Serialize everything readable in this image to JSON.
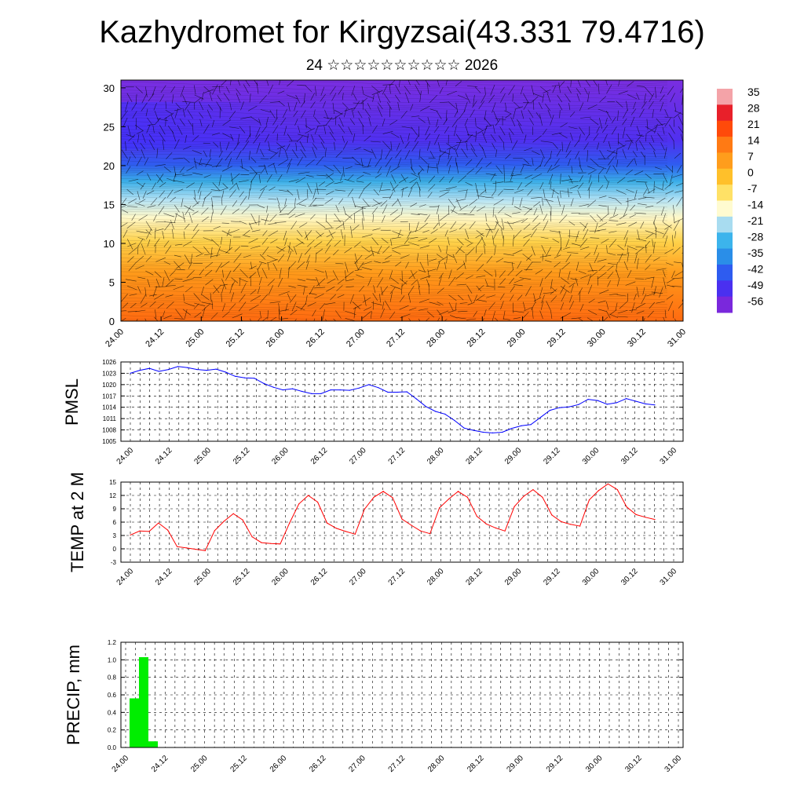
{
  "title": "Kazhydromet for Kirgyzsai(43.331 79.4716)",
  "subtitle": "24 ☆☆☆☆☆☆☆☆☆☆ 2026",
  "colors": {
    "pmsl_line": "#0000ff",
    "temp_line": "#ff0000",
    "precip_bar": "#00ee00",
    "grid": "#000000"
  },
  "chart_data": [
    {
      "id": "upper-field",
      "type": "heatmap",
      "title": "",
      "y_ticks": [
        0,
        5,
        10,
        15,
        20,
        25,
        30
      ],
      "ylim": [
        0,
        31
      ],
      "x_tick_labels": [
        "24.00",
        "24.12",
        "25.00",
        "25.12",
        "26.00",
        "26.12",
        "27.00",
        "27.12",
        "28.00",
        "28.12",
        "29.00",
        "29.12",
        "30.00",
        "30.12",
        "31.00"
      ],
      "colorbar_labels": [
        "35",
        "28",
        "21",
        "14",
        "7",
        "0",
        "-7",
        "-14",
        "-21",
        "-28",
        "-35",
        "-42",
        "-49",
        "-56"
      ],
      "colorbar_colors": [
        "#f4a3a8",
        "#e8202a",
        "#ff4a0a",
        "#ff7a14",
        "#ff9d1c",
        "#ffc02a",
        "#ffe166",
        "#fffbd0",
        "#a8dcf0",
        "#3cb4ec",
        "#2a8ee8",
        "#2e5cf0",
        "#4a30f0",
        "#7a28dc"
      ]
    },
    {
      "id": "pmsl",
      "type": "line",
      "ylabel": "PMSL",
      "y_ticks": [
        1005,
        1008,
        1011,
        1014,
        1017,
        1020,
        1023,
        1026
      ],
      "ylim": [
        1005,
        1026
      ],
      "x_tick_labels": [
        "24.00",
        "24.12",
        "25.00",
        "25.12",
        "26.00",
        "26.12",
        "27.00",
        "27.12",
        "28.00",
        "28.12",
        "29.00",
        "29.12",
        "30.00",
        "30.12",
        "31.00"
      ],
      "series": [
        {
          "name": "PMSL",
          "values": [
            1023,
            1023.8,
            1024.3,
            1023.5,
            1024,
            1024.8,
            1024.5,
            1024,
            1023.8,
            1024.1,
            1023.3,
            1022.2,
            1021.8,
            1021.7,
            1020.3,
            1019.3,
            1018.6,
            1018.9,
            1018.2,
            1017.6,
            1017.6,
            1018.6,
            1018.6,
            1018.5,
            1019.1,
            1020,
            1019.2,
            1018,
            1018,
            1018.1,
            1016.2,
            1014.2,
            1012.9,
            1012.2,
            1010.5,
            1008.5,
            1007.9,
            1007.4,
            1007.2,
            1007.4,
            1008.4,
            1009.1,
            1009.4,
            1011.3,
            1013.2,
            1013.9,
            1014.1,
            1014.7,
            1016.1,
            1015.8,
            1014.8,
            1015.2,
            1016.3,
            1015.6,
            1014.9,
            1014.6
          ]
        }
      ]
    },
    {
      "id": "temp",
      "type": "line",
      "ylabel": "TEMP at 2 M",
      "y_ticks": [
        -3,
        0,
        3,
        6,
        9,
        12,
        15
      ],
      "ylim": [
        -3,
        15
      ],
      "x_tick_labels": [
        "24.00",
        "24.12",
        "25.00",
        "25.12",
        "26.00",
        "26.12",
        "27.00",
        "27.12",
        "28.00",
        "28.12",
        "29.00",
        "29.12",
        "30.00",
        "30.12",
        "31.00"
      ],
      "series": [
        {
          "name": "T2M",
          "values": [
            3.1,
            4,
            3.9,
            5.8,
            4.2,
            0.5,
            0.2,
            -0.1,
            -0.4,
            4.1,
            6.2,
            7.9,
            6.5,
            2.7,
            1.4,
            1.2,
            1.1,
            5.8,
            10.1,
            12,
            10.5,
            5.8,
            4.6,
            3.9,
            3.3,
            8.9,
            11.6,
            12.9,
            11.5,
            6.7,
            5.3,
            4,
            3.4,
            9.2,
            11.2,
            12.9,
            11.6,
            7.3,
            5.6,
            4.7,
            4,
            9.5,
            11.8,
            13.3,
            11.6,
            7.6,
            6.1,
            5.5,
            5.1,
            11,
            13.1,
            14.6,
            13.3,
            9.4,
            7.7,
            7.1,
            6.6
          ]
        }
      ]
    },
    {
      "id": "precip",
      "type": "bar",
      "ylabel": "PRECIP, mm",
      "y_ticks": [
        "0.0",
        "0.2",
        "0.4",
        "0.6",
        "0.8",
        "1.0",
        "1.2"
      ],
      "ylim": [
        0,
        1.2
      ],
      "x_tick_labels": [
        "24.00",
        "24.12",
        "25.00",
        "25.12",
        "26.00",
        "26.12",
        "27.00",
        "27.12",
        "28.00",
        "28.12",
        "29.00",
        "29.12",
        "30.00",
        "30.12",
        "31.00"
      ],
      "series": [
        {
          "name": "PRECIP",
          "values": [
            0.56,
            1.03,
            0.07
          ]
        }
      ]
    }
  ]
}
